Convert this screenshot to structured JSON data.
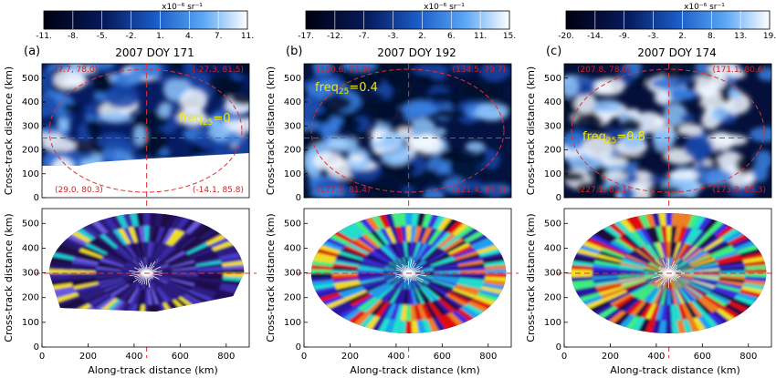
{
  "panels": [
    {
      "label": "(a)",
      "title": "2007 DOY 171",
      "freq_text": "freq",
      "freq_sub": "25",
      "freq_value": "=0",
      "colorbar_unit": "x10⁻⁶ sr⁻¹",
      "colorbar_ticks": [
        "-11.",
        "-8.",
        "-5.",
        "-2.",
        "1.",
        "4.",
        "7.",
        "11."
      ],
      "corners": {
        "top_left": "(7.7, 78.0)",
        "top_right": "(-27.3, 81.5)",
        "bottom_left": "(29.0, 80.3)",
        "bottom_right": "(-14.1, 85.8)"
      },
      "style": "dim",
      "missing_bottom": true
    },
    {
      "label": "(b)",
      "title": "2007 DOY 192",
      "freq_text": "freq",
      "freq_sub": "25",
      "freq_value": "=0.4",
      "colorbar_unit": "x10⁻⁶ sr⁻¹",
      "colorbar_ticks": [
        "-17.",
        "-12.",
        "-7.",
        "-3.",
        "2.",
        "6.",
        "11.",
        "15."
      ],
      "corners": {
        "top_left": "(160.6, 77.8)",
        "top_right": "(134.5, 79.7)",
        "bottom_left": "(177.5, 81.4)",
        "bottom_right": "(121.4, 84.3)"
      },
      "style": "mid",
      "missing_bottom": false
    },
    {
      "label": "(c)",
      "title": "2007 DOY 174",
      "freq_text": "freq",
      "freq_sub": "25",
      "freq_value": "=0.8",
      "colorbar_unit": "x10⁻⁶ sr⁻¹",
      "colorbar_ticks": [
        "-20.",
        "-14.",
        "-9.",
        "-3.",
        "2.",
        "8.",
        "13.",
        "19."
      ],
      "corners": {
        "top_left": "(207.8, 78.0)",
        "top_right": "(171.1, 80.6)",
        "bottom_left": "(227.1, 81.1)",
        "bottom_right": "(173.3, 85.3)"
      },
      "style": "bright",
      "missing_bottom": false
    }
  ],
  "axes": {
    "ylabel": "Cross-track distance (km)",
    "xlabel": "Along-track distance (km)",
    "y_ticks": [
      "0",
      "100",
      "200",
      "300",
      "400",
      "500"
    ],
    "x_ticks": [
      "0",
      "200",
      "400",
      "600",
      "800"
    ]
  },
  "colors": {
    "dashed_line": "#e03030",
    "colorbar_low": "#000018",
    "colorbar_high": "#ffffff"
  }
}
